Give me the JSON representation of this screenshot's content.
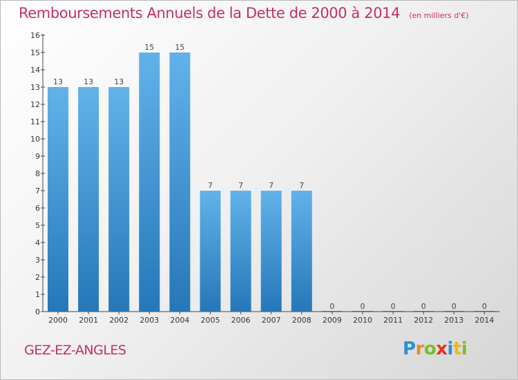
{
  "title": "Remboursements Annuels de la Dette de 2000 à 2014",
  "subtitle": "(en milliers d'€)",
  "commune": "GEZ-EZ-ANGLES",
  "logo": {
    "letters": [
      "P",
      "r",
      "o",
      "x",
      "i",
      "t",
      "i"
    ],
    "colors": [
      "#2d8fd4",
      "#f08a1c",
      "#7cbc2a",
      "#e8311a",
      "#2d8fd4",
      "#f0b41c",
      "#7cbc2a"
    ]
  },
  "colors": {
    "bar_top": "#62b2ea",
    "bar_bottom": "#2577b8",
    "accent": "#c0306b"
  },
  "chart_data": {
    "type": "bar",
    "categories": [
      "2000",
      "2001",
      "2002",
      "2003",
      "2004",
      "2005",
      "2006",
      "2007",
      "2008",
      "2009",
      "2010",
      "2011",
      "2012",
      "2013",
      "2014"
    ],
    "values": [
      13,
      13,
      13,
      15,
      15,
      7,
      7,
      7,
      7,
      0,
      0,
      0,
      0,
      0,
      0
    ],
    "ylim": [
      0,
      16
    ],
    "yticks": [
      0,
      1,
      2,
      3,
      4,
      5,
      6,
      7,
      8,
      9,
      10,
      11,
      12,
      13,
      14,
      15,
      16
    ],
    "grid": false,
    "legend": "none"
  }
}
